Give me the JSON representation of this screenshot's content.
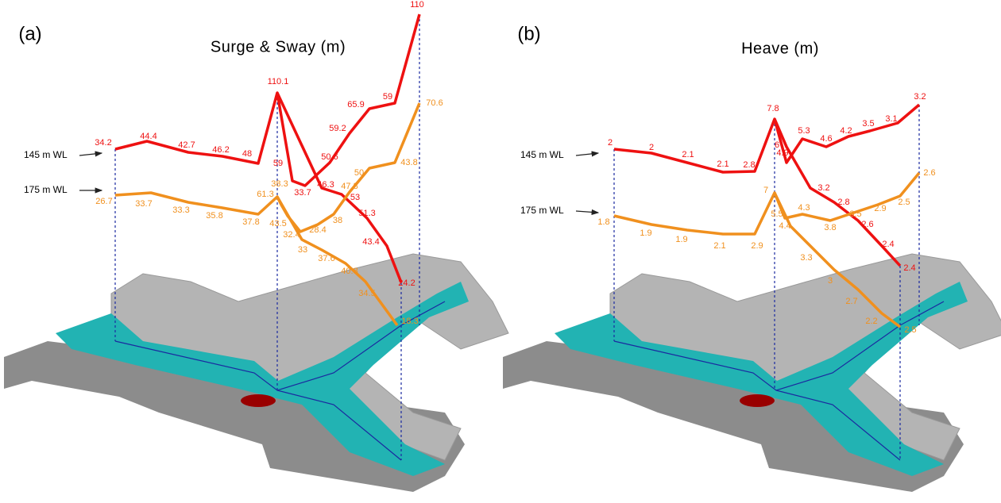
{
  "chart_data": [
    {
      "type": "line",
      "panel_label": "(a)",
      "title": "Surge & Sway (m)",
      "series": [
        {
          "name": "145 m WL",
          "color": "#ee1111",
          "values": [
            34.2,
            44.4,
            42.7,
            46.2,
            48.0,
            110.1,
            46.3,
            53.0,
            51.3,
            43.4,
            24.2
          ],
          "branch_values": [
            59.0,
            33.7,
            50.6,
            59.2,
            65.9,
            59.0,
            110.0
          ]
        },
        {
          "name": "175 m WL",
          "color": "#f0901e",
          "values": [
            26.7,
            33.7,
            33.3,
            35.8,
            37.8,
            61.3,
            33.0,
            37.6,
            40.8,
            34.5,
            18.3
          ],
          "branch_values": [
            38.3,
            43.5,
            32.4,
            28.4,
            38.0,
            47.8,
            50.0,
            43.8,
            70.6
          ]
        }
      ]
    },
    {
      "type": "line",
      "panel_label": "(b)",
      "title": "Heave (m)",
      "series": [
        {
          "name": "145 m WL",
          "color": "#ee1111",
          "values": [
            2.0,
            2.0,
            2.1,
            2.1,
            2.8,
            7.8,
            6.0,
            3.2,
            2.8,
            2.6,
            2.4,
            2.4
          ],
          "branch_values": [
            4.9,
            5.3,
            4.6,
            4.2,
            3.5,
            3.1,
            3.2
          ]
        },
        {
          "name": "175 m WL",
          "color": "#f0901e",
          "values": [
            1.8,
            1.9,
            1.9,
            2.1,
            2.9,
            7.0,
            5.5,
            3.3,
            3.0,
            2.7,
            2.2,
            2.5
          ],
          "branch_values": [
            4.4,
            4.3,
            3.8,
            3.5,
            2.9,
            2.5,
            2.6
          ]
        }
      ]
    }
  ]
}
